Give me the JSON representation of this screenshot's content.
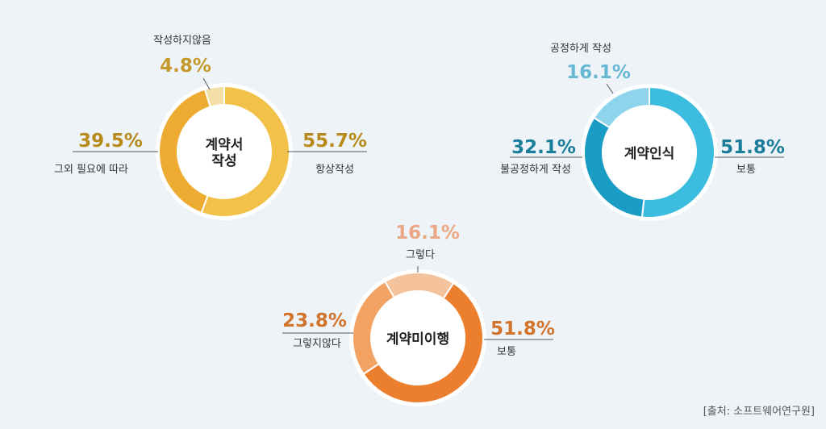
{
  "source": "[출처: 소프트웨어연구원]",
  "chart_data": [
    {
      "type": "pie",
      "center_label": [
        "계약서",
        "작성"
      ],
      "slices": [
        {
          "name": "항상작성",
          "value": 55.7,
          "text": "55.7%",
          "color": "#f1c14a"
        },
        {
          "name": "그외 필요에 따라",
          "value": 39.5,
          "text": "39.5%",
          "color": "#eeab32"
        },
        {
          "name": "작성하지않음",
          "value": 4.8,
          "text": "4.8%",
          "color": "#f4dfa8"
        }
      ],
      "pct_color": "#b78a1a"
    },
    {
      "type": "pie",
      "center_label": [
        "계약인식"
      ],
      "slices": [
        {
          "name": "보통",
          "value": 51.8,
          "text": "51.8%",
          "color": "#3cbde0"
        },
        {
          "name": "불공정하게 작성",
          "value": 32.1,
          "text": "32.1%",
          "color": "#1a9dc4"
        },
        {
          "name": "공정하게 작성",
          "value": 16.1,
          "text": "16.1%",
          "color": "#8ed4ec"
        }
      ],
      "pct_color_strong": "#1a7d99",
      "pct_color_light": "#66b8d4"
    },
    {
      "type": "pie",
      "center_label": [
        "계약미이행"
      ],
      "slices": [
        {
          "name": "보통",
          "value": 51.8,
          "text": "51.8%",
          "color": "#ec7f2e"
        },
        {
          "name": "그렇지않다",
          "value": 23.8,
          "text": "23.8%",
          "color": "#f2a263"
        },
        {
          "name": "그렇다",
          "value": 16.1,
          "text": "16.1%",
          "color": "#f4c39b"
        }
      ],
      "pct_color_strong": "#d2732b",
      "pct_color_light": "#eba784"
    }
  ]
}
